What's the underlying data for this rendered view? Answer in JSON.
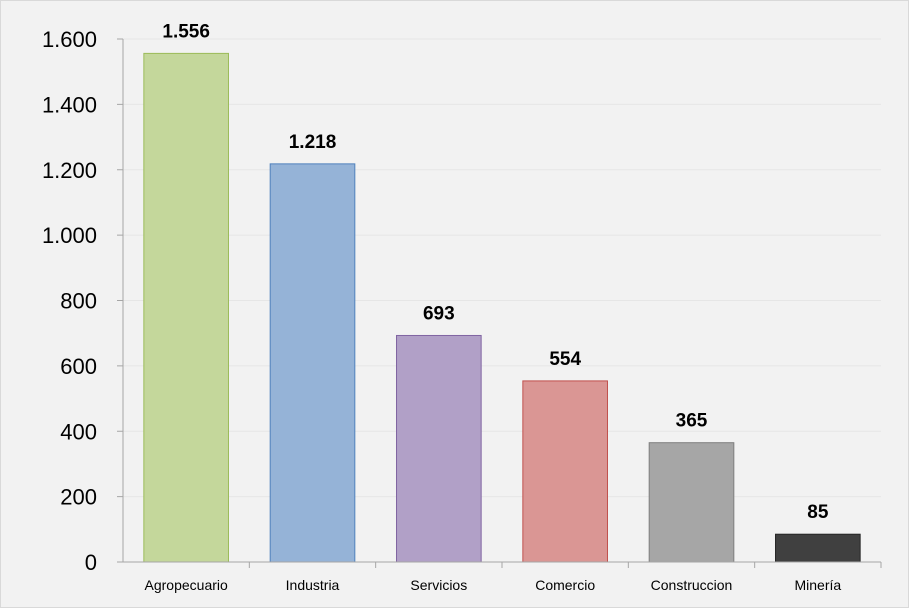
{
  "chart_data": {
    "type": "bar",
    "categories": [
      "Agropecuario",
      "Industria",
      "Servicios",
      "Comercio",
      "Construccion",
      "Minería"
    ],
    "values": [
      1556,
      1218,
      693,
      554,
      365,
      85
    ],
    "data_labels": [
      "1.556",
      "1.218",
      "693",
      "554",
      "365",
      "85"
    ],
    "bar_colors": [
      "#c4d79b",
      "#95b3d7",
      "#b1a0c7",
      "#da9694",
      "#a6a6a6",
      "#404040"
    ],
    "bar_border_colors": [
      "#9bbb59",
      "#4f81bd",
      "#8064a2",
      "#c0504d",
      "#7f7f7f",
      "#262626"
    ],
    "y_ticks": [
      0,
      200,
      400,
      600,
      800,
      1000,
      1200,
      1400,
      1600
    ],
    "y_tick_labels": [
      "0",
      "200",
      "400",
      "600",
      "800",
      "1.000",
      "1.200",
      "1.400",
      "1.600"
    ],
    "ylim": [
      0,
      1600
    ],
    "title": "",
    "xlabel": "",
    "ylabel": "",
    "grid": true,
    "legend": "none",
    "background": "#f2f2f2"
  }
}
